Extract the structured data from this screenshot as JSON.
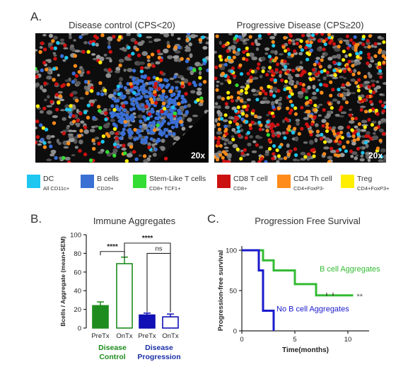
{
  "panel_a": {
    "letter": "A.",
    "left": {
      "title": "Disease control (CPS<20)",
      "magnification": "20x"
    },
    "right": {
      "title": "Progressive Disease (CPS≥20)",
      "magnification": "20x"
    },
    "legend": [
      {
        "name": "DC",
        "marker": "All CD11c+",
        "color": "#1ec6f0"
      },
      {
        "name": "B cells",
        "marker": "CD20+",
        "color": "#3a6fd4"
      },
      {
        "name": "Stem-Like T cells",
        "marker": "CD8+ TCF1+",
        "color": "#33dd33"
      },
      {
        "name": "CD8 T cell",
        "marker": "CD8+",
        "color": "#cc1111"
      },
      {
        "name": "CD4 Th cell",
        "marker": "CD4+FoxP3-",
        "color": "#ff8c1a"
      },
      {
        "name": "Treg",
        "marker": "CD4+FoxP3+",
        "color": "#ffee00"
      }
    ]
  },
  "chart_data": [
    {
      "type": "bar",
      "panel": "B.",
      "title": "Immune Aggregates",
      "ylabel": "Bcells / Aggregate  (mean+SEM)",
      "ylim": [
        0,
        100
      ],
      "yticks": [
        0,
        20,
        40,
        60,
        80,
        100
      ],
      "categories": [
        "PreTx",
        "OnTx",
        "PreTx",
        "OnTx"
      ],
      "values": [
        24,
        69,
        14,
        12
      ],
      "errors": [
        4,
        7,
        2,
        3
      ],
      "bar_styles": [
        "filled",
        "open",
        "filled",
        "open"
      ],
      "bar_colors": [
        "#1e8c1e",
        "#1e8c1e",
        "#1010b4",
        "#1010b4"
      ],
      "groups": [
        {
          "label_line1": "Disease",
          "label_line2": "Control",
          "color": "#1e8c1e"
        },
        {
          "label_line1": "Disease",
          "label_line2": "Progression",
          "color": "#1a2fa6"
        }
      ],
      "significance": [
        {
          "label": "****",
          "from": 0,
          "to": 1
        },
        {
          "label": "ns",
          "from": 2,
          "to": 3
        },
        {
          "label": "****",
          "from": 1,
          "to": 3
        }
      ]
    },
    {
      "type": "line",
      "panel": "C.",
      "title": "Progression Free Survival",
      "xlabel": "Time(months)",
      "ylabel": "Progression-free survival",
      "xlim": [
        0,
        12
      ],
      "ylim": [
        0,
        100
      ],
      "xticks": [
        0,
        5,
        10
      ],
      "yticks": [
        0,
        50,
        100
      ],
      "series": [
        {
          "name": "B cell Aggregates",
          "color": "#33bb33",
          "steps": [
            [
              0,
              100
            ],
            [
              2,
              100
            ],
            [
              2,
              87.5
            ],
            [
              3,
              87.5
            ],
            [
              3,
              75
            ],
            [
              5,
              75
            ],
            [
              5,
              58
            ],
            [
              7,
              58
            ],
            [
              7,
              44
            ],
            [
              10.5,
              44
            ]
          ],
          "censor": [
            [
              8,
              44
            ],
            [
              8.6,
              44
            ]
          ]
        },
        {
          "name": "No B cell Aggregates",
          "color": "#1a1acc",
          "steps": [
            [
              0,
              100
            ],
            [
              1.6,
              100
            ],
            [
              1.6,
              75
            ],
            [
              2,
              75
            ],
            [
              2,
              25
            ],
            [
              3,
              25
            ],
            [
              3,
              0
            ]
          ],
          "censor": []
        }
      ],
      "annotation": "**"
    }
  ]
}
